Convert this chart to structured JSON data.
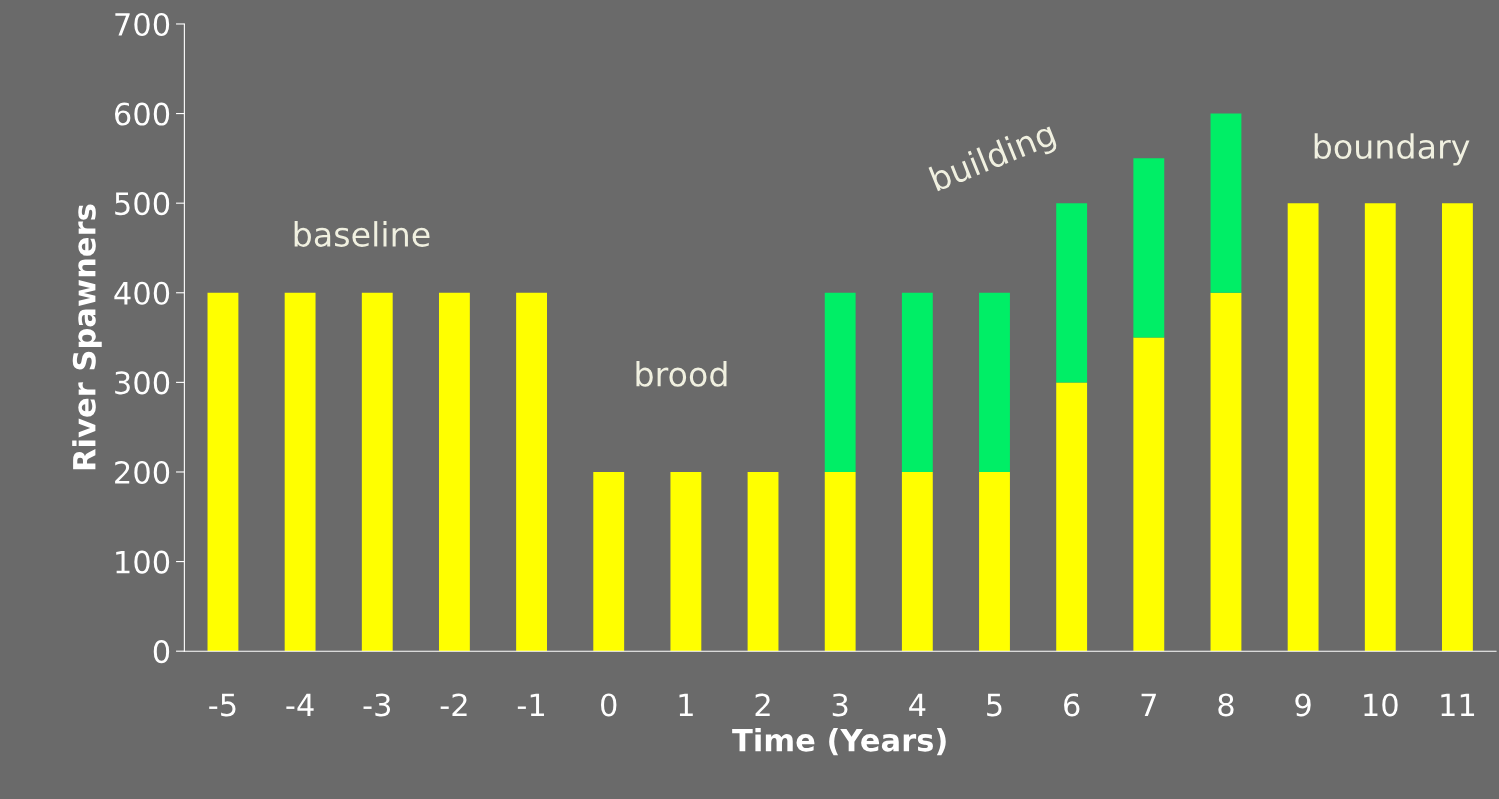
{
  "chart_data": {
    "type": "bar",
    "stacked": true,
    "xlabel": "Time (Years)",
    "ylabel": "River Spawners",
    "categories": [
      "-5",
      "-4",
      "-3",
      "-2",
      "-1",
      "0",
      "1",
      "2",
      "3",
      "4",
      "5",
      "6",
      "7",
      "8",
      "9",
      "10",
      "11"
    ],
    "series": [
      {
        "color": "#ffff00",
        "values": [
          400,
          400,
          400,
          400,
          400,
          200,
          200,
          200,
          200,
          200,
          200,
          300,
          350,
          400,
          500,
          500,
          500
        ]
      },
      {
        "color": "#00ee66",
        "values": [
          null,
          null,
          null,
          null,
          null,
          null,
          null,
          null,
          200,
          200,
          200,
          200,
          200,
          200,
          null,
          null,
          null
        ]
      }
    ],
    "ylim": [
      0,
      700
    ],
    "yticks": [
      0,
      100,
      200,
      300,
      400,
      500,
      600,
      700
    ],
    "grid": false,
    "annotations": [
      "baseline",
      "brood",
      "building",
      "boundary"
    ]
  }
}
